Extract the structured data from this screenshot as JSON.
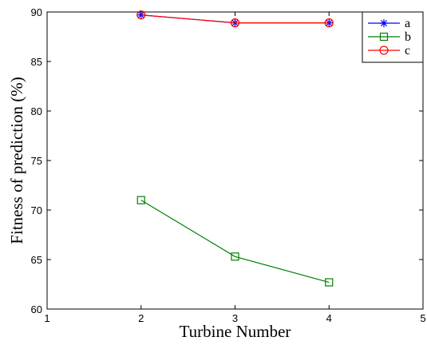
{
  "chart_data": {
    "type": "line",
    "xlabel": "Turbine Number",
    "ylabel": "Fitness of prediction (%)",
    "xlim": [
      1,
      5
    ],
    "ylim": [
      60,
      90
    ],
    "xticks": [
      "1",
      "2",
      "3",
      "4",
      "5"
    ],
    "yticks": [
      "60",
      "65",
      "70",
      "75",
      "80",
      "85",
      "90"
    ],
    "grid": false,
    "legend_position": "top-right",
    "x": [
      2,
      3,
      4
    ],
    "series": [
      {
        "name": "a",
        "values": [
          89.7,
          88.9,
          88.9
        ],
        "color": "#0000ff",
        "marker": "star"
      },
      {
        "name": "b",
        "values": [
          71.0,
          65.3,
          62.7
        ],
        "color": "#008000",
        "marker": "square"
      },
      {
        "name": "c",
        "values": [
          89.7,
          88.9,
          88.9
        ],
        "color": "#ff0000",
        "marker": "circle"
      }
    ]
  }
}
